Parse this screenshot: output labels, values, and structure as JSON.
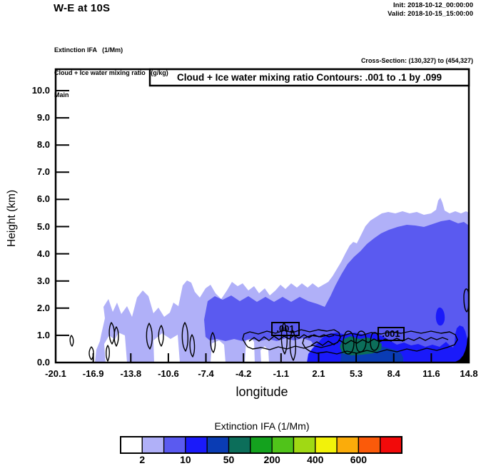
{
  "header": {
    "title": "W-E at 10S",
    "init": "Init: 2018-10-12_00:00:00",
    "valid": "Valid: 2018-10-15_15:00:00",
    "field_lines": [
      "Extinction IFA   (1/Mm)",
      "Cloud + Ice water mixing ratio   (g/kg)",
      "Main"
    ],
    "cross_section": "Cross-Section: (130,327) to (454,327)"
  },
  "chart_data": {
    "type": "heatmap",
    "subtype": "filled-contour vertical cross-section with line-contour overlay",
    "title": "Cloud + Ice water mixing ratio Contours: .001 to .1 by .099",
    "xlabel": "longitude",
    "ylabel": "Height (km)",
    "x_tick_labels": [
      "-20.1",
      "-16.9",
      "-13.8",
      "-10.6",
      "-7.4",
      "-4.2",
      "-1.1",
      "2.1",
      "5.3",
      "8.4",
      "11.6",
      "14.8"
    ],
    "y_tick_labels": [
      "0.0",
      "1.0",
      "2.0",
      "3.0",
      "4.0",
      "5.0",
      "6.0",
      "7.0",
      "8.0",
      "9.0",
      "10.0"
    ],
    "xlim": [
      -20.1,
      14.8
    ],
    "ylim": [
      0,
      10.8
    ],
    "grid": false,
    "fill_series": {
      "name": "Extinction IFA (1/Mm)",
      "legend_position": "bottom colorbar",
      "palette": [
        "#ffffff",
        "#b0b0f8",
        "#5a5af0",
        "#1a1afa",
        "#0a3cb4",
        "#0c6e5a",
        "#14a21e",
        "#50c31a",
        "#a0d914",
        "#f2f20a",
        "#fbac0a",
        "#fb5a0a",
        "#f20a0a"
      ],
      "colorbar_tick_labels": [
        "2",
        "10",
        "50",
        "200",
        "400",
        "600"
      ],
      "regions_described": [
        {
          "level": "light periwinkle (approx 2-5 /Mm)",
          "extent": "scattered shallow patches 0-2.5 km between lon -18.5 and -6; continuous layer rising to a 5.5-6 km plateau from lon 0 to 14.8 with a spike to ~6 km near lon 12.5"
        },
        {
          "level": "blue-violet (approx 5-10 /Mm)",
          "extent": "layer ~1-2.4 km from lon -6.5 to 2; deep mass up to ~5 km from lon 2 to 14.8"
        },
        {
          "level": "blue (approx 10-20 /Mm)",
          "extent": "below ~1.2 km from lon 2 to 14.8, small oval pocket near lon 12.4 at ~1.5 km"
        },
        {
          "level": "dark blue (approx 20-50 /Mm)",
          "extent": "below ~0.6 km from lon 4.3 to 9.5"
        },
        {
          "level": "teal (approx 50-100 /Mm)",
          "extent": "small pocket ~0.3-1.0 km near lon 4.5-8"
        }
      ]
    },
    "contour_series": {
      "name": "Cloud + Ice water mixing ratio (g/kg)",
      "levels": ".001 to .1 by .099",
      "visible_labels": [
        ".001",
        ".001"
      ],
      "extent": "small shallow cloud cells 0.2-1.4 km scattered lon -19 to -6; quasi-continuous cloud layer 0.3-1.2 km from lon -4.5 to 14.6"
    },
    "terrain_note": "black terrain wedge at bottom right corner near lon 14.8, rising to ~1.2 km"
  },
  "colorbar": {
    "title": "Extinction IFA  (1/Mm)",
    "tick_labels": [
      "2",
      "10",
      "50",
      "200",
      "400",
      "600"
    ]
  },
  "contour_labels": {
    "label1": ".001",
    "label2": ".001"
  }
}
